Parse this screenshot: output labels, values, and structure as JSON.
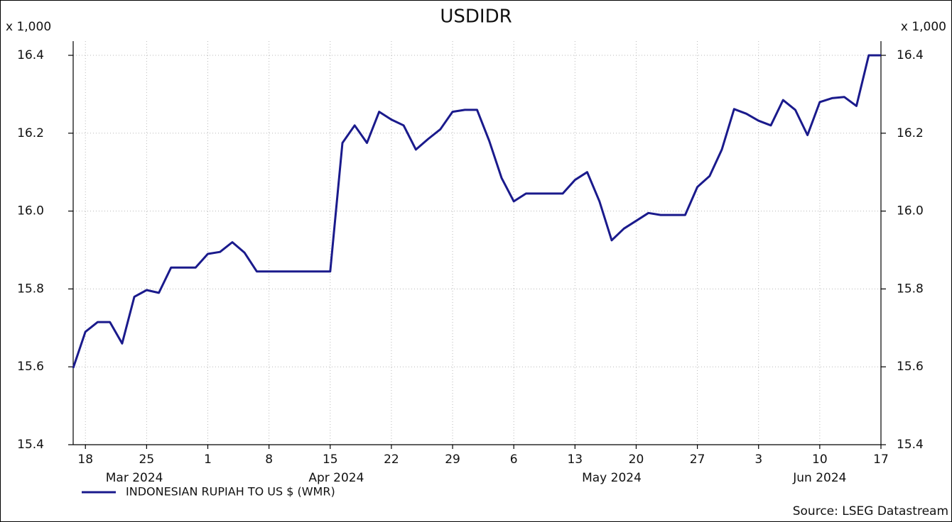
{
  "chart_data": {
    "type": "line",
    "title": "USDIDR",
    "y_unit": "x 1,000",
    "y2_unit": "x 1,000",
    "source": "Source: LSEG Datastream",
    "x": [
      "2024-03-15",
      "2024-03-18",
      "2024-03-19",
      "2024-03-20",
      "2024-03-21",
      "2024-03-22",
      "2024-03-25",
      "2024-03-26",
      "2024-03-27",
      "2024-03-28",
      "2024-03-29",
      "2024-04-01",
      "2024-04-02",
      "2024-04-03",
      "2024-04-04",
      "2024-04-05",
      "2024-04-08",
      "2024-04-09",
      "2024-04-10",
      "2024-04-11",
      "2024-04-12",
      "2024-04-15",
      "2024-04-16",
      "2024-04-17",
      "2024-04-18",
      "2024-04-19",
      "2024-04-22",
      "2024-04-23",
      "2024-04-24",
      "2024-04-25",
      "2024-04-26",
      "2024-04-29",
      "2024-04-30",
      "2024-05-01",
      "2024-05-02",
      "2024-05-03",
      "2024-05-06",
      "2024-05-07",
      "2024-05-08",
      "2024-05-09",
      "2024-05-10",
      "2024-05-13",
      "2024-05-14",
      "2024-05-15",
      "2024-05-16",
      "2024-05-17",
      "2024-05-20",
      "2024-05-21",
      "2024-05-22",
      "2024-05-23",
      "2024-05-24",
      "2024-05-27",
      "2024-05-28",
      "2024-05-29",
      "2024-05-30",
      "2024-05-31",
      "2024-06-03",
      "2024-06-04",
      "2024-06-05",
      "2024-06-06",
      "2024-06-07",
      "2024-06-10",
      "2024-06-11",
      "2024-06-12",
      "2024-06-13",
      "2024-06-14",
      "2024-06-17"
    ],
    "series": [
      {
        "name": "INDONESIAN RUPIAH TO US $ (WMR)",
        "color": "#1a1a8c",
        "values": [
          15.597,
          15.69,
          15.715,
          15.715,
          15.66,
          15.78,
          15.797,
          15.79,
          15.855,
          15.855,
          15.855,
          15.89,
          15.895,
          15.92,
          15.893,
          15.845,
          15.845,
          15.845,
          15.845,
          15.845,
          15.845,
          15.845,
          16.175,
          16.22,
          16.175,
          16.255,
          16.235,
          16.22,
          16.158,
          16.185,
          16.21,
          16.255,
          16.26,
          16.26,
          16.18,
          16.085,
          16.025,
          16.045,
          16.045,
          16.045,
          16.045,
          16.08,
          16.1,
          16.025,
          15.925,
          15.955,
          15.975,
          15.995,
          15.99,
          15.99,
          15.99,
          16.062,
          16.09,
          16.158,
          16.262,
          16.25,
          16.232,
          16.22,
          16.285,
          16.26,
          16.195,
          16.28,
          16.29,
          16.293,
          16.27,
          16.4,
          16.4
        ]
      }
    ],
    "xlim": [
      "2024-03-15",
      "2024-06-17"
    ],
    "xticks": [
      {
        "value": "2024-03-18",
        "label": "18"
      },
      {
        "value": "2024-03-25",
        "label": "25"
      },
      {
        "value": "2024-04-01",
        "label": "1"
      },
      {
        "value": "2024-04-08",
        "label": "8"
      },
      {
        "value": "2024-04-15",
        "label": "15"
      },
      {
        "value": "2024-04-22",
        "label": "22"
      },
      {
        "value": "2024-04-29",
        "label": "29"
      },
      {
        "value": "2024-05-06",
        "label": "6"
      },
      {
        "value": "2024-05-13",
        "label": "13"
      },
      {
        "value": "2024-05-20",
        "label": "20"
      },
      {
        "value": "2024-05-27",
        "label": "27"
      },
      {
        "value": "2024-06-03",
        "label": "3"
      },
      {
        "value": "2024-06-10",
        "label": "10"
      },
      {
        "value": "2024-06-17",
        "label": "17"
      }
    ],
    "months": [
      {
        "value": "2024-03",
        "label": "Mar 2024"
      },
      {
        "value": "2024-04",
        "label": "Apr 2024"
      },
      {
        "value": "2024-05",
        "label": "May 2024"
      },
      {
        "value": "2024-06",
        "label": "Jun 2024"
      }
    ],
    "ylim": [
      15.4,
      16.4
    ],
    "yticks": [
      15.4,
      15.6,
      15.8,
      {
        "value": 16,
        "label": "16.0"
      },
      16.2,
      16.4
    ],
    "y2lim": [
      15.4,
      16.4
    ],
    "y2ticks": [
      15.4,
      15.6,
      15.8,
      {
        "value": 16,
        "label": "16.0"
      },
      16.2,
      16.4
    ],
    "grid": true
  }
}
